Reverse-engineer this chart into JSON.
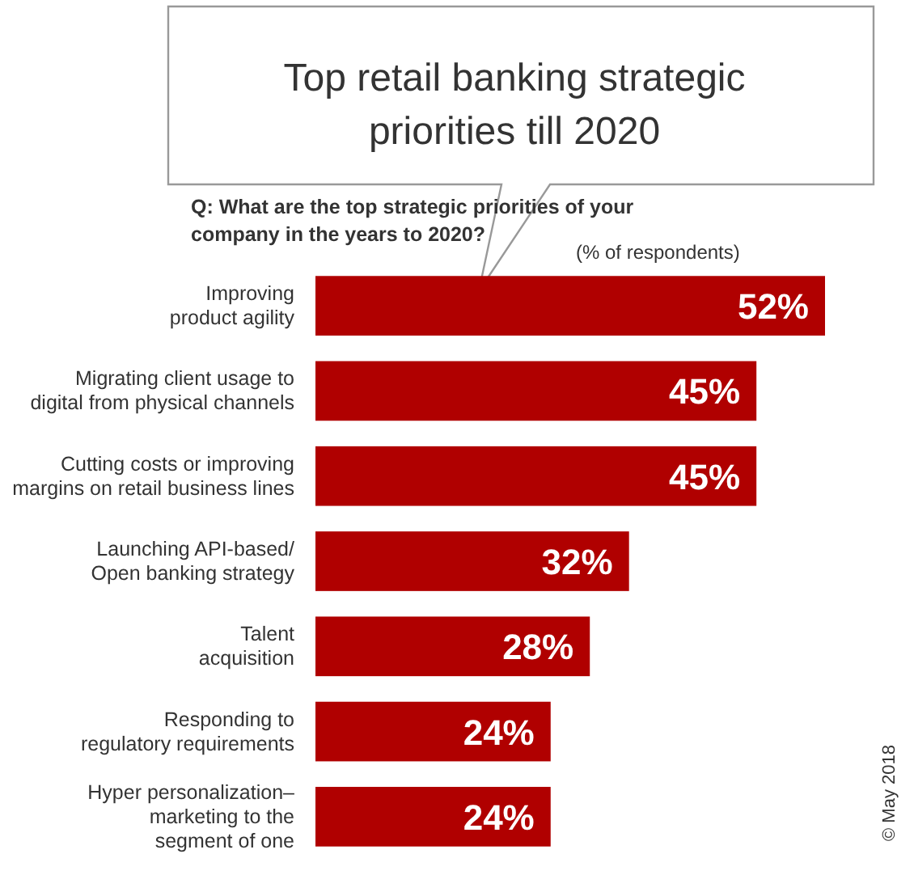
{
  "chart_data": {
    "type": "bar",
    "orientation": "horizontal",
    "relative": false,
    "title": "Top retail banking strategic\npriorities till 2020",
    "annotations": [
      "Q: What are the top strategic priorities of your\ncompany in the years to 2020?",
      "(% of respondents)",
      "© May 2018"
    ],
    "categories": [
      "Improving\nproduct agility",
      "Migrating client usage to\ndigital from physical channels",
      "Cutting costs or improving\nmargins on retail business lines",
      "Launching API-based/\nOpen banking strategy",
      "Talent\nacquisition",
      "Responding to\nregulatory requirements",
      "Hyper personalization–\nmarketing to the\nsegment of one"
    ],
    "values": [
      52,
      45,
      45,
      32,
      28,
      24,
      24
    ],
    "value_labels": [
      "52%",
      "45%",
      "45%",
      "32%",
      "28%",
      "24%",
      "24%"
    ],
    "color": "#b00000"
  }
}
